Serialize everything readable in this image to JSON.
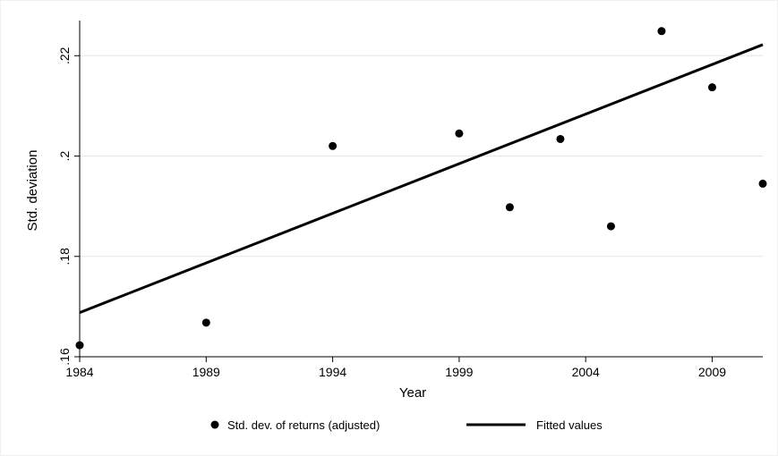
{
  "chart_data": {
    "type": "scatter",
    "xlabel": "Year",
    "ylabel": "Std. deviation",
    "xlim": [
      1984,
      2011
    ],
    "ylim": [
      0.16,
      0.227
    ],
    "x_ticks": [
      1984,
      1989,
      1994,
      1999,
      2004,
      2009
    ],
    "x_tick_labels": [
      "1984",
      "1989",
      "1994",
      "1999",
      "2004",
      "2009"
    ],
    "y_ticks": [
      0.16,
      0.18,
      0.2,
      0.22
    ],
    "y_tick_labels": [
      ".16",
      ".18",
      ".2",
      ".22"
    ],
    "grid": true,
    "legend_position": "bottom",
    "series": [
      {
        "name": "Std. dev. of returns (adjusted)",
        "kind": "scatter",
        "color": "#000000",
        "points": [
          {
            "x": 1984,
            "y": 0.1623
          },
          {
            "x": 1989,
            "y": 0.1668
          },
          {
            "x": 1994,
            "y": 0.202
          },
          {
            "x": 1999,
            "y": 0.2045
          },
          {
            "x": 2001,
            "y": 0.1898
          },
          {
            "x": 2003,
            "y": 0.2034
          },
          {
            "x": 2005,
            "y": 0.186
          },
          {
            "x": 2007,
            "y": 0.2249
          },
          {
            "x": 2009,
            "y": 0.2137
          },
          {
            "x": 2011,
            "y": 0.1945
          }
        ]
      },
      {
        "name": "Fitted values",
        "kind": "line",
        "color": "#000000",
        "points": [
          {
            "x": 1984,
            "y": 0.1688
          },
          {
            "x": 2011,
            "y": 0.2222
          }
        ]
      }
    ]
  }
}
